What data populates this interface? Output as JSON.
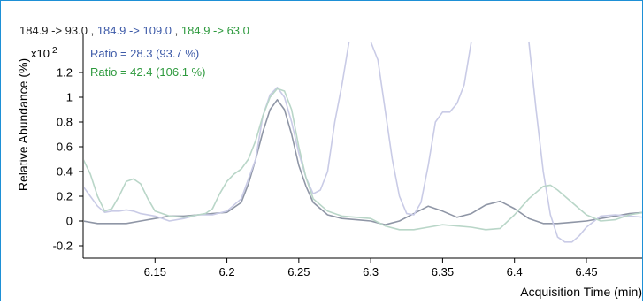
{
  "transitions": [
    {
      "label": "184.9 -> 93.0",
      "color": "#222222"
    },
    {
      "sep": " , ",
      "label": "184.9 -> 109.0",
      "color": "#3d5aa8"
    },
    {
      "sep": " , ",
      "label": "184.9 -> 63.0",
      "color": "#2e9a3e"
    }
  ],
  "ratios": [
    {
      "label": "Ratio = 28.3 (93.7 %)",
      "color": "#3d5aa8"
    },
    {
      "label": "Ratio = 42.4 (106.1 %)",
      "color": "#2e9a3e"
    }
  ],
  "chart_data": {
    "type": "line",
    "xlabel": "Acquisition Time (min)",
    "ylabel": "Relative Abundance (%)",
    "y_multiplier": "x10 2",
    "xlim": [
      6.1,
      6.49
    ],
    "ylim": [
      -0.3,
      1.45
    ],
    "x_ticks": [
      6.15,
      6.2,
      6.25,
      6.3,
      6.35,
      6.4,
      6.45
    ],
    "x_tick_labels": [
      "6.15",
      "6.2",
      "6.25",
      "6.3",
      "6.35",
      "6.4",
      "6.45"
    ],
    "y_ticks": [
      -0.2,
      0,
      0.2,
      0.4,
      0.6,
      0.8,
      1,
      1.2
    ],
    "y_tick_labels": [
      "-0.2",
      "0",
      "0.2",
      "0.4",
      "0.6",
      "0.8",
      "1",
      "1.2"
    ],
    "grid": false,
    "series": [
      {
        "color": "#8f96a6",
        "points": [
          [
            6.1,
            0.0
          ],
          [
            6.11,
            -0.02
          ],
          [
            6.12,
            -0.02
          ],
          [
            6.13,
            -0.02
          ],
          [
            6.14,
            0.0
          ],
          [
            6.15,
            0.02
          ],
          [
            6.16,
            0.04
          ],
          [
            6.17,
            0.04
          ],
          [
            6.18,
            0.05
          ],
          [
            6.19,
            0.06
          ],
          [
            6.2,
            0.07
          ],
          [
            6.21,
            0.15
          ],
          [
            6.215,
            0.3
          ],
          [
            6.22,
            0.5
          ],
          [
            6.225,
            0.72
          ],
          [
            6.23,
            0.9
          ],
          [
            6.235,
            0.98
          ],
          [
            6.24,
            0.9
          ],
          [
            6.245,
            0.7
          ],
          [
            6.25,
            0.45
          ],
          [
            6.255,
            0.28
          ],
          [
            6.26,
            0.15
          ],
          [
            6.27,
            0.05
          ],
          [
            6.28,
            0.02
          ],
          [
            6.29,
            0.01
          ],
          [
            6.3,
            0.0
          ],
          [
            6.31,
            -0.03
          ],
          [
            6.32,
            0.0
          ],
          [
            6.33,
            0.06
          ],
          [
            6.34,
            0.12
          ],
          [
            6.35,
            0.08
          ],
          [
            6.36,
            0.03
          ],
          [
            6.37,
            0.06
          ],
          [
            6.38,
            0.13
          ],
          [
            6.39,
            0.16
          ],
          [
            6.4,
            0.1
          ],
          [
            6.41,
            0.02
          ],
          [
            6.42,
            -0.02
          ],
          [
            6.43,
            -0.02
          ],
          [
            6.44,
            -0.01
          ],
          [
            6.45,
            0.0
          ],
          [
            6.46,
            0.02
          ],
          [
            6.47,
            0.04
          ],
          [
            6.48,
            0.06
          ],
          [
            6.49,
            0.07
          ]
        ]
      },
      {
        "color": "#c9cbe6",
        "points": [
          [
            6.1,
            0.28
          ],
          [
            6.105,
            0.2
          ],
          [
            6.11,
            0.12
          ],
          [
            6.115,
            0.07
          ],
          [
            6.12,
            0.08
          ],
          [
            6.125,
            0.08
          ],
          [
            6.13,
            0.09
          ],
          [
            6.135,
            0.08
          ],
          [
            6.14,
            0.06
          ],
          [
            6.15,
            0.04
          ],
          [
            6.16,
            0.0
          ],
          [
            6.17,
            0.02
          ],
          [
            6.18,
            0.05
          ],
          [
            6.19,
            0.05
          ],
          [
            6.2,
            0.08
          ],
          [
            6.21,
            0.18
          ],
          [
            6.22,
            0.5
          ],
          [
            6.225,
            0.85
          ],
          [
            6.23,
            1.02
          ],
          [
            6.235,
            1.08
          ],
          [
            6.24,
            1.0
          ],
          [
            6.245,
            0.8
          ],
          [
            6.25,
            0.55
          ],
          [
            6.255,
            0.35
          ],
          [
            6.26,
            0.22
          ],
          [
            6.265,
            0.25
          ],
          [
            6.27,
            0.4
          ],
          [
            6.275,
            0.8
          ],
          [
            6.28,
            1.1
          ],
          [
            6.285,
            1.45
          ]
        ]
      },
      {
        "color": "#c9cbe6",
        "points": [
          [
            6.3,
            1.45
          ],
          [
            6.305,
            1.3
          ],
          [
            6.31,
            0.9
          ],
          [
            6.315,
            0.5
          ],
          [
            6.32,
            0.2
          ],
          [
            6.325,
            0.06
          ],
          [
            6.33,
            0.05
          ],
          [
            6.335,
            0.15
          ],
          [
            6.34,
            0.45
          ],
          [
            6.345,
            0.8
          ],
          [
            6.35,
            0.88
          ],
          [
            6.355,
            0.88
          ],
          [
            6.36,
            0.95
          ],
          [
            6.365,
            1.1
          ],
          [
            6.37,
            1.45
          ]
        ]
      },
      {
        "color": "#c9cbe6",
        "points": [
          [
            6.41,
            1.45
          ],
          [
            6.415,
            0.9
          ],
          [
            6.42,
            0.4
          ],
          [
            6.425,
            0.05
          ],
          [
            6.43,
            -0.13
          ],
          [
            6.435,
            -0.17
          ],
          [
            6.44,
            -0.17
          ],
          [
            6.445,
            -0.12
          ],
          [
            6.45,
            -0.05
          ],
          [
            6.46,
            0.04
          ],
          [
            6.47,
            0.05
          ],
          [
            6.48,
            0.04
          ],
          [
            6.49,
            0.03
          ]
        ]
      },
      {
        "color": "#b9d6c8",
        "points": [
          [
            6.1,
            0.5
          ],
          [
            6.105,
            0.38
          ],
          [
            6.11,
            0.2
          ],
          [
            6.115,
            0.08
          ],
          [
            6.12,
            0.1
          ],
          [
            6.125,
            0.2
          ],
          [
            6.13,
            0.32
          ],
          [
            6.135,
            0.34
          ],
          [
            6.14,
            0.3
          ],
          [
            6.145,
            0.18
          ],
          [
            6.15,
            0.08
          ],
          [
            6.16,
            0.04
          ],
          [
            6.17,
            0.03
          ],
          [
            6.18,
            0.05
          ],
          [
            6.185,
            0.06
          ],
          [
            6.19,
            0.1
          ],
          [
            6.195,
            0.22
          ],
          [
            6.2,
            0.32
          ],
          [
            6.205,
            0.38
          ],
          [
            6.21,
            0.42
          ],
          [
            6.215,
            0.5
          ],
          [
            6.22,
            0.65
          ],
          [
            6.225,
            0.85
          ],
          [
            6.23,
            1.0
          ],
          [
            6.235,
            1.07
          ],
          [
            6.24,
            1.05
          ],
          [
            6.245,
            0.9
          ],
          [
            6.25,
            0.6
          ],
          [
            6.255,
            0.35
          ],
          [
            6.26,
            0.18
          ],
          [
            6.27,
            0.08
          ],
          [
            6.28,
            0.04
          ],
          [
            6.29,
            0.03
          ],
          [
            6.3,
            0.02
          ],
          [
            6.31,
            -0.04
          ],
          [
            6.32,
            -0.07
          ],
          [
            6.33,
            -0.07
          ],
          [
            6.34,
            -0.05
          ],
          [
            6.35,
            -0.03
          ],
          [
            6.36,
            -0.04
          ],
          [
            6.37,
            -0.05
          ],
          [
            6.38,
            -0.07
          ],
          [
            6.39,
            -0.06
          ],
          [
            6.4,
            0.05
          ],
          [
            6.41,
            0.18
          ],
          [
            6.42,
            0.28
          ],
          [
            6.425,
            0.29
          ],
          [
            6.43,
            0.25
          ],
          [
            6.44,
            0.15
          ],
          [
            6.45,
            0.05
          ],
          [
            6.46,
            0.0
          ],
          [
            6.47,
            0.01
          ],
          [
            6.48,
            0.05
          ],
          [
            6.49,
            0.07
          ]
        ]
      }
    ]
  }
}
